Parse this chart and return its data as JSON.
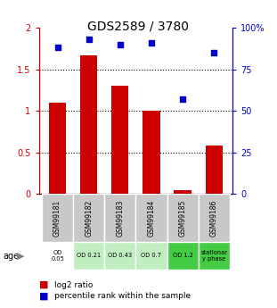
{
  "title": "GDS2589 / 3780",
  "samples": [
    "GSM99181",
    "GSM99182",
    "GSM99183",
    "GSM99184",
    "GSM99185",
    "GSM99186"
  ],
  "log2_ratio": [
    1.1,
    1.67,
    1.3,
    1.0,
    0.05,
    0.58
  ],
  "percentile_rank": [
    88,
    93,
    90,
    91,
    57,
    85
  ],
  "bar_color": "#cc0000",
  "dot_color": "#0000cc",
  "ylim_left": [
    0,
    2
  ],
  "ylim_right": [
    0,
    100
  ],
  "yticks_left": [
    0,
    0.5,
    1.0,
    1.5,
    2.0
  ],
  "yticks_right": [
    0,
    25,
    50,
    75,
    100
  ],
  "ytick_labels_left": [
    "0",
    "0.5",
    "1",
    "1.5",
    "2"
  ],
  "ytick_labels_right": [
    "0",
    "25",
    "50",
    "75",
    "100%"
  ],
  "sample_labels": [
    "GSM99181",
    "GSM99182",
    "GSM99183",
    "GSM99184",
    "GSM99185",
    "GSM99186"
  ],
  "age_labels": [
    "OD\n0.05",
    "OD 0.21",
    "OD 0.43",
    "OD 0.7",
    "OD 1.2",
    "stationar\ny phase"
  ],
  "age_bg_colors": [
    "#ffffff",
    "#c0eec0",
    "#c0eec0",
    "#c0eec0",
    "#44cc44",
    "#44cc44"
  ],
  "sample_bg_color": "#c8c8c8",
  "legend_bar_label": "log2 ratio",
  "legend_dot_label": "percentile rank within the sample",
  "age_row_label": "age",
  "left_tick_color": "#cc0000",
  "right_tick_color": "#0000cc"
}
